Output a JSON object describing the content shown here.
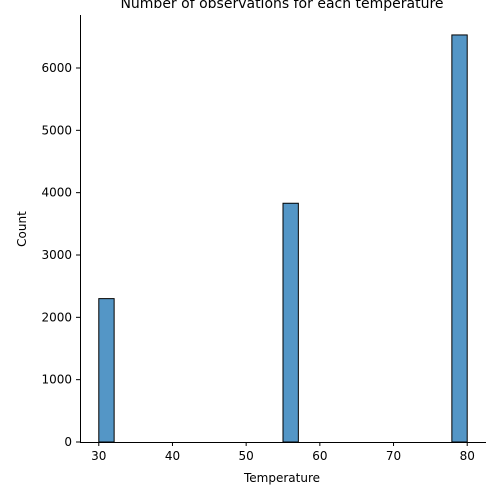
{
  "chart_data": {
    "type": "bar",
    "title": "Number of observations for each temperature",
    "xlabel": "Temperature",
    "ylabel": "Count",
    "xlim": [
      27.45,
      82.55
    ],
    "ylim": [
      0,
      6850
    ],
    "xticks": [
      30,
      40,
      50,
      60,
      70,
      80
    ],
    "yticks": [
      0,
      1000,
      2000,
      3000,
      4000,
      5000,
      6000,
      7000
    ],
    "bin_width": 2.083,
    "bars": [
      {
        "x_start": 30,
        "x_end": 32.083,
        "count": 2300
      },
      {
        "x_start": 55,
        "x_end": 57.083,
        "count": 3830
      },
      {
        "x_start": 77.917,
        "x_end": 80,
        "count": 6530
      }
    ],
    "bar_color": "#5496c6",
    "edge_color": "#000000",
    "grid": false
  }
}
